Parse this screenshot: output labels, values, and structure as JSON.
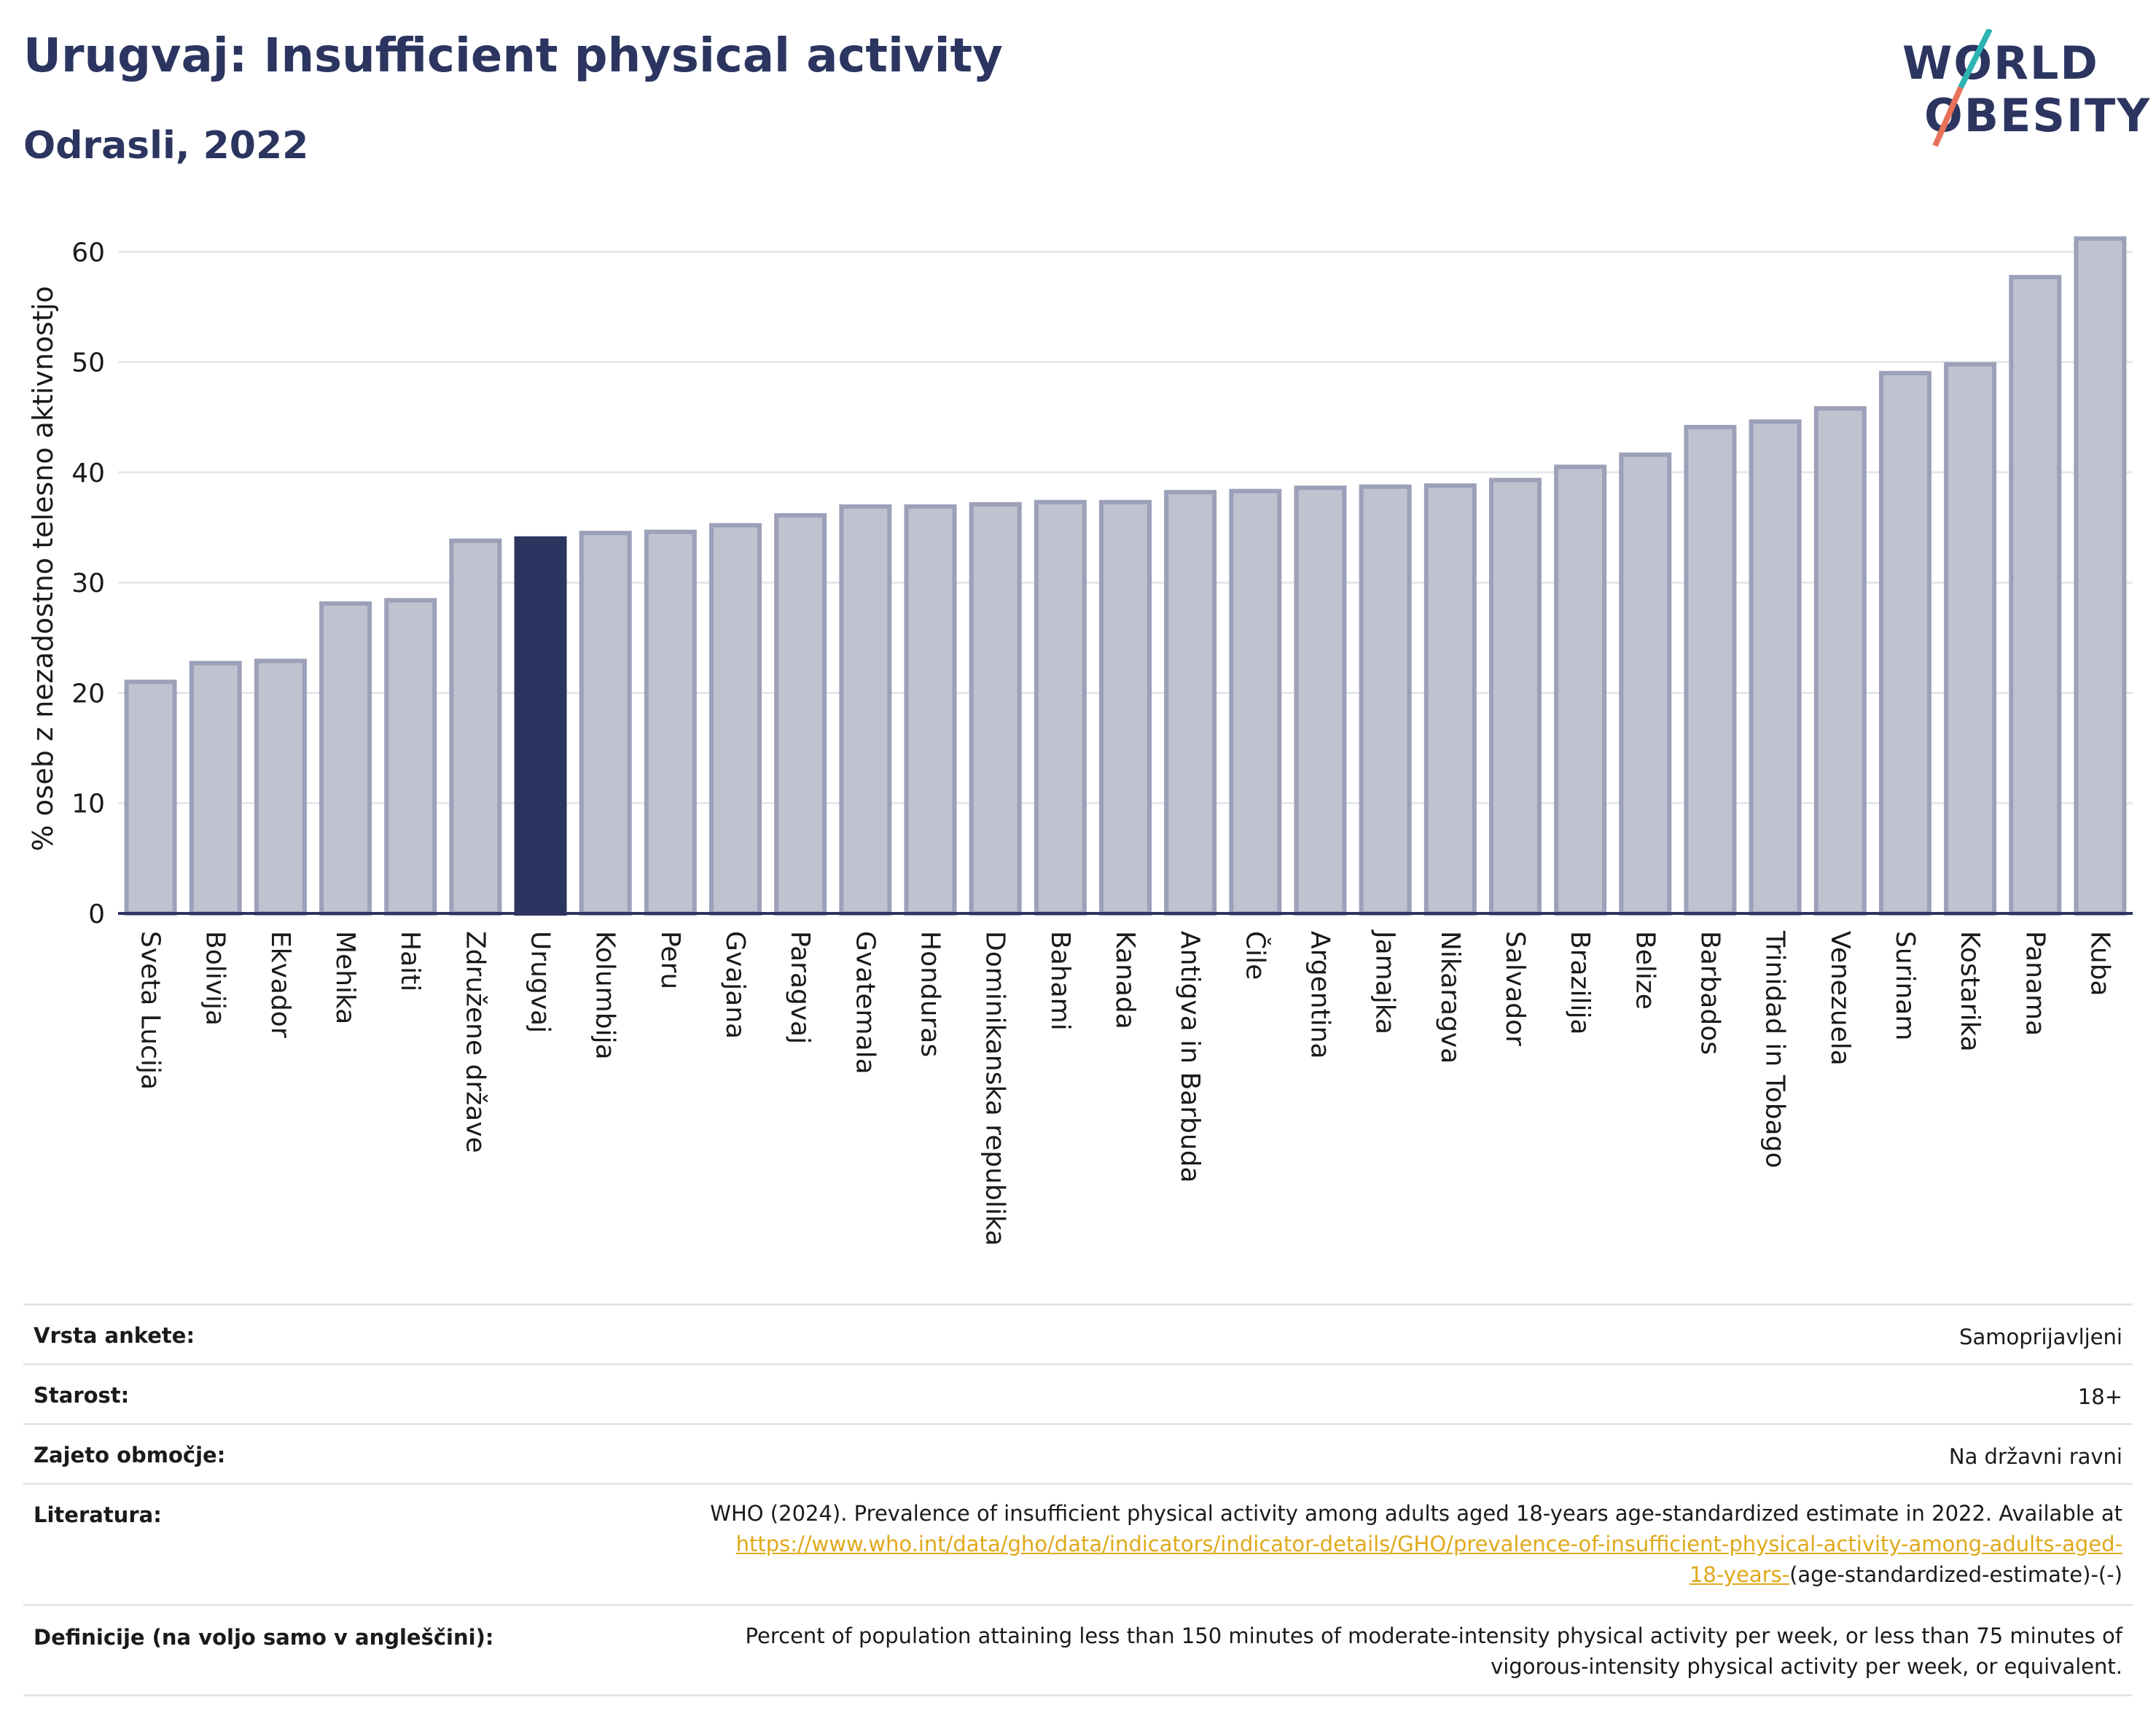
{
  "header": {
    "title": "Urugvaj: Insufficient physical activity",
    "subtitle": "Odrasli, 2022"
  },
  "logo": {
    "line1": "WORLD",
    "line2": "OBESITY"
  },
  "colors": {
    "highlight": "#2b3560",
    "bar": "#bfc2cf",
    "bar_edge": "#9ca0b8",
    "grid": "#e6e7eb",
    "link": "#e0a91a"
  },
  "chart_data": {
    "type": "bar",
    "ylabel": "% oseb z nezadostno telesno aktivnostjo",
    "ylim": [
      0,
      63
    ],
    "yticks": [
      0,
      10,
      20,
      30,
      40,
      50,
      60
    ],
    "highlight": "Urugvaj",
    "categories": [
      "Sveta Lucija",
      "Bolivija",
      "Ekvador",
      "Mehika",
      "Haiti",
      "Združene države",
      "Urugvaj",
      "Kolumbija",
      "Peru",
      "Gvajana",
      "Paragvaj",
      "Gvatemala",
      "Honduras",
      "Dominikanska republika",
      "Bahami",
      "Kanada",
      "Antigva in Barbuda",
      "Čile",
      "Argentina",
      "Jamajka",
      "Nikaragva",
      "Salvador",
      "Brazilija",
      "Belize",
      "Barbados",
      "Trinidad in Tobago",
      "Venezuela",
      "Surinam",
      "Kostarika",
      "Panama",
      "Kuba"
    ],
    "values": [
      21.0,
      22.7,
      22.9,
      28.1,
      28.4,
      33.8,
      34.0,
      34.5,
      34.6,
      35.2,
      36.1,
      36.9,
      36.9,
      37.1,
      37.3,
      37.3,
      38.2,
      38.3,
      38.6,
      38.7,
      38.8,
      39.3,
      40.5,
      41.6,
      44.1,
      44.6,
      45.8,
      49.0,
      49.8,
      57.7,
      61.2
    ]
  },
  "info": {
    "survey_label": "Vrsta ankete:",
    "survey_value": "Samoprijavljeni",
    "age_label": "Starost:",
    "age_value": "18+",
    "coverage_label": "Zajeto območje:",
    "coverage_value": "Na državni ravni",
    "ref_label": "Literatura:",
    "ref_text": "WHO (2024). Prevalence of insufficient physical activity among adults aged 18-years age-standardized estimate in 2022. Available at",
    "ref_link_1": "https://www.who.int/data/gho/data/indicators/indicator-details/GHO/prevalence-of-insufficient-physical-activity-among-adults-aged-",
    "ref_link_2": "18-years-",
    "ref_tail": "(age-standardized-estimate)-(-)",
    "def_label": "Definicije (na voljo samo v angleščini):",
    "def_line1": "Percent of population attaining less than 150 minutes of moderate-intensity physical activity per week, or less than 75 minutes of",
    "def_line2": "vigorous-intensity physical activity per week, or equivalent."
  }
}
